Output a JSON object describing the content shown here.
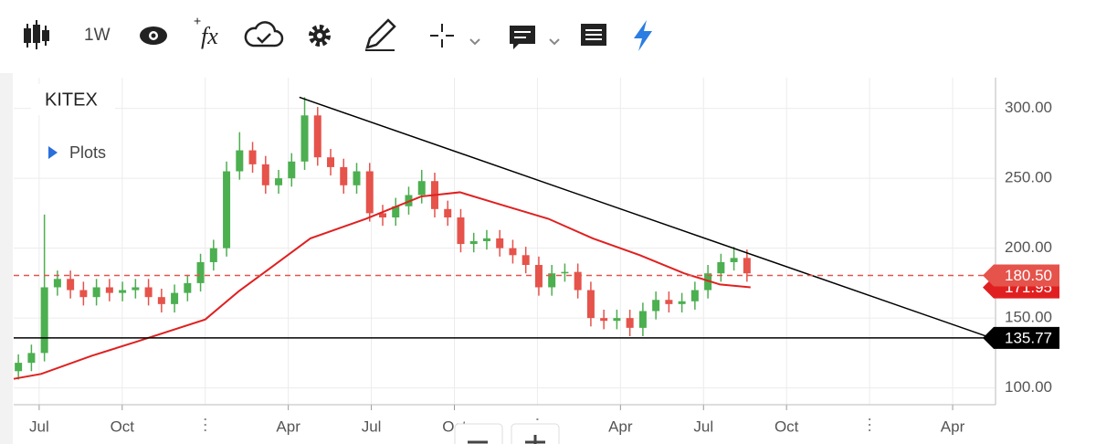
{
  "toolbar": {
    "interval": "1W"
  },
  "chart_data": {
    "type": "candlestick",
    "symbol": "KITEX",
    "plots_label": "Plots",
    "x": [
      -0.75,
      -0.28,
      0.19,
      0.66,
      1.13,
      1.6,
      2.07,
      2.54,
      3.01,
      3.48,
      3.95,
      4.42,
      4.89,
      5.36,
      5.83,
      6.3,
      6.77,
      7.24,
      7.71,
      8.18,
      8.65,
      9.12,
      9.59,
      10.06,
      10.53,
      11.0,
      11.47,
      11.94,
      12.41,
      12.88,
      13.35,
      13.82,
      14.29,
      14.76,
      15.23,
      15.7,
      16.17,
      16.64,
      17.11,
      17.58,
      18.05,
      18.52,
      18.99,
      19.46,
      19.93,
      20.4,
      20.87,
      21.34,
      21.81,
      22.28,
      22.75,
      23.22,
      23.69,
      24.16,
      24.63,
      25.1,
      25.57
    ],
    "open": [
      112,
      118,
      125,
      172,
      178,
      170,
      165,
      172,
      168,
      170,
      172,
      165,
      160,
      168,
      175,
      190,
      200,
      255,
      270,
      260,
      245,
      250,
      262,
      295,
      265,
      258,
      245,
      255,
      225,
      222,
      230,
      238,
      248,
      228,
      222,
      203,
      205,
      207,
      200,
      195,
      188,
      172,
      182,
      183,
      170,
      150,
      148,
      150,
      143,
      155,
      163,
      160,
      162,
      170,
      182,
      190,
      193
    ],
    "high": [
      124,
      131,
      224,
      184,
      184,
      176,
      178,
      178,
      176,
      178,
      178,
      171,
      174,
      181,
      196,
      206,
      262,
      283,
      276,
      266,
      256,
      268,
      308,
      301,
      271,
      264,
      261,
      261,
      231,
      236,
      244,
      256,
      254,
      234,
      228,
      211,
      213,
      213,
      206,
      201,
      194,
      188,
      189,
      189,
      176,
      156,
      156,
      156,
      161,
      169,
      169,
      168,
      176,
      188,
      196,
      201,
      199
    ],
    "low": [
      106,
      112,
      119,
      166,
      164,
      159,
      159,
      162,
      162,
      164,
      159,
      154,
      154,
      162,
      169,
      184,
      194,
      249,
      254,
      239,
      239,
      244,
      256,
      259,
      252,
      239,
      239,
      219,
      216,
      216,
      224,
      232,
      222,
      216,
      197,
      197,
      199,
      194,
      189,
      182,
      166,
      166,
      176,
      164,
      144,
      142,
      142,
      137,
      137,
      149,
      154,
      154,
      156,
      164,
      176,
      184,
      176
    ],
    "close": [
      118,
      125,
      172,
      178,
      170,
      165,
      172,
      168,
      170,
      172,
      165,
      160,
      168,
      175,
      190,
      200,
      255,
      270,
      260,
      245,
      250,
      262,
      295,
      265,
      258,
      245,
      255,
      225,
      222,
      230,
      238,
      248,
      228,
      222,
      203,
      205,
      207,
      200,
      195,
      188,
      172,
      182,
      183,
      170,
      150,
      148,
      150,
      143,
      155,
      163,
      160,
      162,
      170,
      182,
      190,
      193,
      182
    ],
    "up_color": "#4caf50",
    "down_color": "#e5534b",
    "moving_average": {
      "color": "#e02020",
      "x": [
        -0.92,
        0.07,
        1.9,
        3.5,
        6.0,
        7.2,
        8.5,
        9.8,
        11.8,
        13.8,
        15.2,
        16.7,
        18.4,
        20.0,
        21.7,
        23.3,
        24.6,
        25.7
      ],
      "values": [
        106.5,
        110,
        123,
        133,
        149,
        169,
        188,
        207,
        221,
        237,
        240,
        231,
        221,
        207,
        195,
        182,
        174,
        172
      ],
      "last": {
        "value": 171.95,
        "label": "171.95"
      }
    },
    "trendline": {
      "color": "#000000",
      "x": [
        9.4,
        34.4
      ],
      "values": [
        308,
        135.77
      ]
    },
    "horizontal_lines": [
      {
        "value": 180.5,
        "label": "180.50",
        "color": "#e5534b",
        "dashed": true
      },
      {
        "value": 135.77,
        "label": "135.77",
        "color": "#000000",
        "dashed": false
      }
    ],
    "xlim": [
      -0.92,
      34.55
    ],
    "xticks": [
      {
        "value": 0,
        "label": "Jul"
      },
      {
        "value": 3,
        "label": "Oct"
      },
      {
        "value": 9,
        "label": "Apr"
      },
      {
        "value": 12,
        "label": "Jul"
      },
      {
        "value": 15,
        "label": "Oct"
      },
      {
        "value": 21,
        "label": "Apr"
      },
      {
        "value": 24,
        "label": "Jul"
      },
      {
        "value": 27,
        "label": "Oct"
      },
      {
        "value": 33,
        "label": "Apr"
      }
    ],
    "year_marks": [
      6,
      18,
      30
    ],
    "ylim": [
      88,
      322
    ],
    "yticks": [
      {
        "value": 100,
        "label": "100.00"
      },
      {
        "value": 150,
        "label": "150.00"
      },
      {
        "value": 200,
        "label": "200.00"
      },
      {
        "value": 250,
        "label": "250.00"
      },
      {
        "value": 300,
        "label": "300.00"
      }
    ],
    "grid": true
  }
}
